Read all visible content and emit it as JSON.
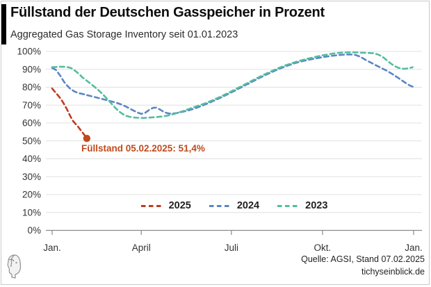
{
  "header": {
    "title": "Füllstand der Deutschen Gasspeicher in Prozent",
    "subtitle": "Aggregated Gas Storage Inventory seit 01.01.2023"
  },
  "footer": {
    "source": "Quelle: AGSI, Stand 07.02.2025",
    "site": "tichyseinblick.de"
  },
  "logo": {
    "icon": "tichys-einblick-profile-head-logo"
  },
  "colors": {
    "accent_bar": "#000000",
    "grid": "#e0e0e0",
    "axis": "#8a8a8a",
    "tick_text": "#333333",
    "frame": "#c9c9c9",
    "annotation": "#bf4a1c"
  },
  "chart_data": {
    "type": "line",
    "title": "Füllstand der Deutschen Gasspeicher in Prozent",
    "subtitle": "Aggregated Gas Storage Inventory seit 01.01.2023",
    "xlabel": "",
    "ylabel": "",
    "ylim": [
      0,
      100
    ],
    "grid": true,
    "legend_position": "bottom-center",
    "x_unit": "day_of_year",
    "y_ticks": [
      "100%",
      "90%",
      "80%",
      "70%",
      "60%",
      "50%",
      "40%",
      "30%",
      "20%",
      "10%",
      "0%"
    ],
    "x_ticks": [
      {
        "label": "Jan.",
        "day": 0
      },
      {
        "label": "April",
        "day": 90
      },
      {
        "label": "Juli",
        "day": 181
      },
      {
        "label": "Okt.",
        "day": 273
      },
      {
        "label": "Jan.",
        "day": 365
      }
    ],
    "series": [
      {
        "name": "2025",
        "color": "#c03b21",
        "style": "dashed",
        "points": [
          [
            0,
            79.3
          ],
          [
            3,
            77.3
          ],
          [
            6,
            75.4
          ],
          [
            9,
            73.3
          ],
          [
            12,
            70.6
          ],
          [
            15,
            67.6
          ],
          [
            18,
            64.2
          ],
          [
            21,
            61.2
          ],
          [
            23,
            59.9
          ],
          [
            26,
            58.1
          ],
          [
            29,
            55.9
          ],
          [
            32,
            53.7
          ],
          [
            35,
            51.4
          ]
        ]
      },
      {
        "name": "2024",
        "color": "#5b86c3",
        "style": "dashed",
        "points": [
          [
            0,
            90.8
          ],
          [
            4,
            89.6
          ],
          [
            8,
            86.6
          ],
          [
            12,
            83.0
          ],
          [
            15,
            81.0
          ],
          [
            18,
            79.3
          ],
          [
            22,
            77.8
          ],
          [
            26,
            76.8
          ],
          [
            31,
            76.2
          ],
          [
            38,
            75.2
          ],
          [
            45,
            74.2
          ],
          [
            52,
            73.2
          ],
          [
            59,
            72.2
          ],
          [
            63,
            71.6
          ],
          [
            67,
            70.9
          ],
          [
            71,
            70.1
          ],
          [
            75,
            69.1
          ],
          [
            79,
            67.9
          ],
          [
            83,
            66.7
          ],
          [
            87,
            65.7
          ],
          [
            90,
            65.1
          ],
          [
            94,
            65.7
          ],
          [
            98,
            67.3
          ],
          [
            102,
            68.5
          ],
          [
            105,
            68.6
          ],
          [
            109,
            67.5
          ],
          [
            113,
            66.1
          ],
          [
            117,
            65.4
          ],
          [
            121,
            65.2
          ],
          [
            126,
            65.6
          ],
          [
            132,
            66.3
          ],
          [
            138,
            67.1
          ],
          [
            145,
            68.3
          ],
          [
            152,
            69.8
          ],
          [
            159,
            71.4
          ],
          [
            166,
            73.1
          ],
          [
            173,
            74.9
          ],
          [
            180,
            76.8
          ],
          [
            187,
            78.8
          ],
          [
            194,
            80.8
          ],
          [
            201,
            82.8
          ],
          [
            208,
            84.8
          ],
          [
            215,
            86.7
          ],
          [
            222,
            88.5
          ],
          [
            229,
            90.2
          ],
          [
            236,
            91.7
          ],
          [
            243,
            93.1
          ],
          [
            250,
            94.2
          ],
          [
            257,
            95.1
          ],
          [
            264,
            95.9
          ],
          [
            271,
            96.6
          ],
          [
            278,
            97.2
          ],
          [
            285,
            97.7
          ],
          [
            292,
            98.1
          ],
          [
            297,
            98.3
          ],
          [
            302,
            98.3
          ],
          [
            306,
            98.1
          ],
          [
            310,
            97.3
          ],
          [
            314,
            96.1
          ],
          [
            318,
            94.8
          ],
          [
            322,
            93.7
          ],
          [
            326,
            92.5
          ],
          [
            330,
            91.4
          ],
          [
            334,
            90.3
          ],
          [
            338,
            89.2
          ],
          [
            342,
            87.9
          ],
          [
            346,
            86.5
          ],
          [
            350,
            85.0
          ],
          [
            354,
            83.5
          ],
          [
            358,
            82.0
          ],
          [
            361,
            81.0
          ],
          [
            364,
            80.3
          ]
        ]
      },
      {
        "name": "2023",
        "color": "#53bd9e",
        "style": "dashed",
        "points": [
          [
            0,
            91.2
          ],
          [
            4,
            91.3
          ],
          [
            8,
            91.4
          ],
          [
            12,
            91.4
          ],
          [
            16,
            91.2
          ],
          [
            19,
            90.7
          ],
          [
            22,
            89.7
          ],
          [
            25,
            88.4
          ],
          [
            28,
            86.9
          ],
          [
            31,
            85.3
          ],
          [
            35,
            83.6
          ],
          [
            39,
            81.9
          ],
          [
            43,
            80.1
          ],
          [
            47,
            78.2
          ],
          [
            51,
            76.1
          ],
          [
            55,
            73.8
          ],
          [
            59,
            71.4
          ],
          [
            62,
            69.5
          ],
          [
            65,
            67.8
          ],
          [
            68,
            66.3
          ],
          [
            71,
            65.1
          ],
          [
            74,
            64.1
          ],
          [
            78,
            63.5
          ],
          [
            82,
            63.1
          ],
          [
            87,
            62.9
          ],
          [
            92,
            62.8
          ],
          [
            97,
            63.0
          ],
          [
            102,
            63.2
          ],
          [
            107,
            63.4
          ],
          [
            112,
            63.7
          ],
          [
            117,
            64.2
          ],
          [
            122,
            64.9
          ],
          [
            127,
            65.7
          ],
          [
            132,
            66.6
          ],
          [
            137,
            67.6
          ],
          [
            142,
            68.6
          ],
          [
            147,
            69.6
          ],
          [
            152,
            70.5
          ],
          [
            159,
            72.0
          ],
          [
            166,
            73.7
          ],
          [
            173,
            75.5
          ],
          [
            180,
            77.4
          ],
          [
            187,
            79.4
          ],
          [
            194,
            81.4
          ],
          [
            201,
            83.4
          ],
          [
            208,
            85.4
          ],
          [
            215,
            87.3
          ],
          [
            222,
            89.1
          ],
          [
            229,
            90.8
          ],
          [
            236,
            92.3
          ],
          [
            243,
            93.6
          ],
          [
            250,
            94.8
          ],
          [
            257,
            95.8
          ],
          [
            264,
            96.7
          ],
          [
            271,
            97.6
          ],
          [
            278,
            98.3
          ],
          [
            285,
            98.9
          ],
          [
            292,
            99.3
          ],
          [
            299,
            99.5
          ],
          [
            306,
            99.5
          ],
          [
            312,
            99.3
          ],
          [
            318,
            99.2
          ],
          [
            324,
            99.0
          ],
          [
            328,
            98.5
          ],
          [
            331,
            97.8
          ],
          [
            334,
            96.8
          ],
          [
            337,
            95.5
          ],
          [
            340,
            94.1
          ],
          [
            343,
            92.8
          ],
          [
            346,
            91.8
          ],
          [
            349,
            91.0
          ],
          [
            352,
            90.5
          ],
          [
            355,
            90.3
          ],
          [
            358,
            90.4
          ],
          [
            361,
            90.7
          ],
          [
            364,
            91.2
          ]
        ]
      }
    ],
    "annotation": {
      "text": "Füllstand 05.02.2025: 51,4%",
      "day": 35,
      "value": 51.4,
      "color": "#bf4a1c"
    }
  }
}
